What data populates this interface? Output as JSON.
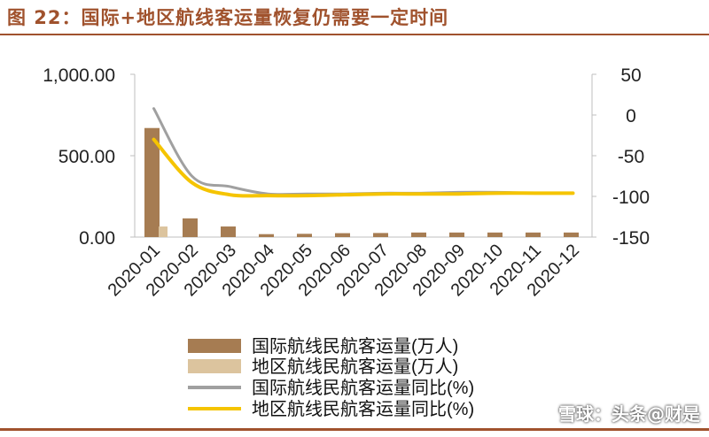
{
  "title": "图 22：国际+地区航线客运量恢复仍需要一定时间",
  "watermark": "雪球：头条@财是",
  "chart_data": {
    "type": "bar",
    "categories": [
      "2020-01",
      "2020-02",
      "2020-03",
      "2020-04",
      "2020-05",
      "2020-06",
      "2020-07",
      "2020-08",
      "2020-09",
      "2020-10",
      "2020-11",
      "2020-12"
    ],
    "left_axis": {
      "ticks": [
        "0.00",
        "500.00",
        "1,000.00"
      ],
      "ylim": [
        0,
        1000
      ]
    },
    "right_axis": {
      "ticks": [
        "50",
        "0",
        "-50",
        "-100",
        "-150"
      ],
      "ylim": [
        -150,
        50
      ]
    },
    "series": [
      {
        "name": "国际航线民航客运量(万人)",
        "type": "bar",
        "axis": "left",
        "color": "#a67c52",
        "values": [
          670,
          115,
          65,
          18,
          20,
          24,
          25,
          28,
          28,
          28,
          28,
          28
        ]
      },
      {
        "name": "地区航线民航客运量(万人)",
        "type": "bar",
        "axis": "left",
        "color": "#dcc49e",
        "values": [
          65,
          0,
          0,
          0,
          0,
          0,
          0,
          0,
          0,
          0,
          0,
          0
        ]
      },
      {
        "name": "国际航线民航客运量同比(%)",
        "type": "line",
        "axis": "right",
        "color": "#a0a0a0",
        "values": [
          8,
          -75,
          -88,
          -97,
          -97,
          -97,
          -96,
          -96,
          -95,
          -95,
          -96,
          -96
        ]
      },
      {
        "name": "地区航线民航客运量同比(%)",
        "type": "line",
        "axis": "right",
        "color": "#f5c400",
        "values": [
          -30,
          -83,
          -98,
          -99,
          -99,
          -98,
          -97,
          -97,
          -97,
          -96,
          -96,
          -96
        ]
      }
    ],
    "legend_position": "bottom",
    "grid": false
  }
}
